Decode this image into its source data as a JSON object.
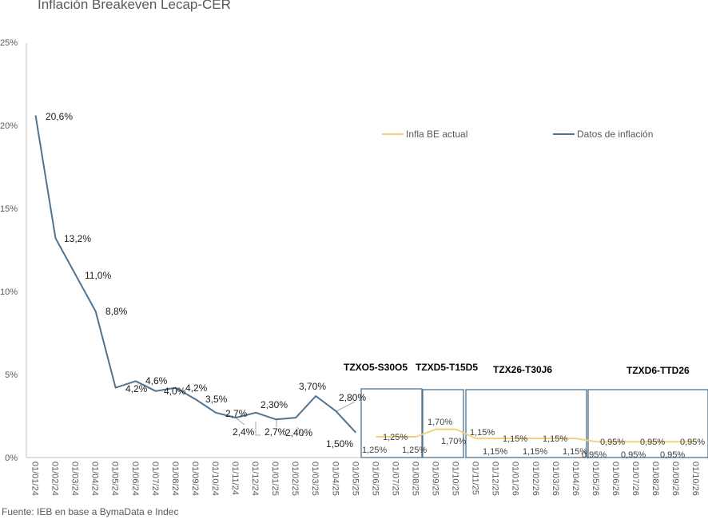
{
  "chart_data": {
    "type": "line",
    "title": "Inflación Breakeven Lecap-CER",
    "source": "Fuente: IEB en base a BymaData e Indec",
    "xlabel": "",
    "ylabel": "",
    "ylim": [
      0,
      25
    ],
    "y_ticks": [
      "0%",
      "5%",
      "10%",
      "15%",
      "20%",
      "25%"
    ],
    "y_tick_values": [
      0,
      5,
      10,
      15,
      20,
      25
    ],
    "categories": [
      "01/01/24",
      "01/02/24",
      "01/03/24",
      "01/04/24",
      "01/05/24",
      "01/06/24",
      "01/07/24",
      "01/08/24",
      "01/09/24",
      "01/10/24",
      "01/11/24",
      "01/12/24",
      "01/01/25",
      "01/02/25",
      "01/03/25",
      "01/04/25",
      "01/05/25",
      "01/06/25",
      "01/07/25",
      "01/08/25",
      "01/09/25",
      "01/10/25",
      "01/11/25",
      "01/12/25",
      "01/01/26",
      "01/02/26",
      "01/03/26",
      "01/04/26",
      "01/05/26",
      "01/06/26",
      "01/07/26",
      "01/08/26",
      "01/09/26",
      "01/10/26"
    ],
    "legend_position": "top-right",
    "grid": false,
    "series": [
      {
        "name": "Datos de inflación",
        "color": "#4f7391",
        "values": [
          20.6,
          13.2,
          11.0,
          8.8,
          4.2,
          4.6,
          4.0,
          4.2,
          3.5,
          2.7,
          2.4,
          2.7,
          2.3,
          2.4,
          3.7,
          2.8,
          1.5,
          null,
          null,
          null,
          null,
          null,
          null,
          null,
          null,
          null,
          null,
          null,
          null,
          null,
          null,
          null,
          null,
          null
        ],
        "labels": [
          "20,6%",
          "13,2%",
          "11,0%",
          "8,8%",
          "4,2%",
          "4,6%",
          "4,0%",
          "4,2%",
          "3,5%",
          "2,7%",
          "2,4%",
          "2,7%",
          "2,30%",
          "2,40%",
          "3,70%",
          "2,80%",
          "1,50%"
        ]
      },
      {
        "name": "Infla BE actual",
        "color": "#f2d27a",
        "values": [
          null,
          null,
          null,
          null,
          null,
          null,
          null,
          null,
          null,
          null,
          null,
          null,
          null,
          null,
          null,
          null,
          null,
          1.25,
          1.25,
          1.25,
          1.7,
          1.7,
          1.15,
          1.15,
          1.15,
          1.15,
          1.15,
          1.15,
          0.95,
          0.95,
          0.95,
          0.95,
          0.95,
          0.95
        ],
        "labels": [
          "1,25%",
          "1,25%",
          "1,25%",
          "1,70%",
          "1,70%",
          "1,15%",
          "1,15%",
          "1,15%",
          "1,15%",
          "1,15%",
          "1,15%",
          "0,95%",
          "0,95%",
          "0,95%",
          "0,95%",
          "0,95%",
          "0,95%"
        ]
      }
    ],
    "annotations": [
      {
        "label": "TZXO5-S30O5",
        "from": "01/06/25",
        "to": "01/08/25"
      },
      {
        "label": "TZXD5-T15D5",
        "from": "01/09/25",
        "to": "01/10/25"
      },
      {
        "label": "TZX26-T30J6",
        "from": "01/11/25",
        "to": "01/04/26"
      },
      {
        "label": "TZXD6-TTD26",
        "from": "01/05/26",
        "to": "01/10/26"
      }
    ]
  }
}
